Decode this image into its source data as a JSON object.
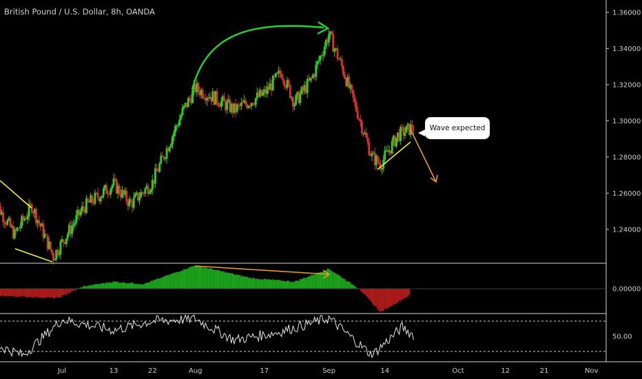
{
  "title": "British Pound / U.S. Dollar, 8h, OANDA",
  "annotation": "Wave expected",
  "chart_data": [
    {
      "type": "candlestick",
      "title": "British Pound / U.S. Dollar, 8h, OANDA",
      "ylim": [
        1.222,
        1.363
      ],
      "y_ticks": [
        "1.36000",
        "1.34000",
        "1.32000",
        "1.30000",
        "1.28000",
        "1.26000",
        "1.24000"
      ],
      "x_ticks": [
        "Jul",
        "13",
        "22",
        "Aug",
        "17",
        "Sep",
        "14",
        "Oct",
        "12",
        "21",
        "Nov"
      ],
      "approx_close_path": [
        {
          "date": "Jun 15",
          "close": 1.257
        },
        {
          "date": "Jun 20",
          "close": 1.237
        },
        {
          "date": "Jun 24",
          "close": 1.253
        },
        {
          "date": "Jun 29",
          "close": 1.225
        },
        {
          "date": "Jul 6",
          "close": 1.252
        },
        {
          "date": "Jul 13",
          "close": 1.265
        },
        {
          "date": "Jul 17",
          "close": 1.254
        },
        {
          "date": "Jul 22",
          "close": 1.266
        },
        {
          "date": "Jul 29",
          "close": 1.305
        },
        {
          "date": "Aug 1",
          "close": 1.318
        },
        {
          "date": "Aug 6",
          "close": 1.312
        },
        {
          "date": "Aug 10",
          "close": 1.306
        },
        {
          "date": "Aug 17",
          "close": 1.315
        },
        {
          "date": "Aug 21",
          "close": 1.327
        },
        {
          "date": "Aug 24",
          "close": 1.31
        },
        {
          "date": "Aug 28",
          "close": 1.323
        },
        {
          "date": "Sep 1",
          "close": 1.348
        },
        {
          "date": "Sep 4",
          "close": 1.33
        },
        {
          "date": "Sep 8",
          "close": 1.302
        },
        {
          "date": "Sep 11",
          "close": 1.28
        },
        {
          "date": "Sep 13",
          "close": 1.276
        },
        {
          "date": "Sep 17",
          "close": 1.292
        },
        {
          "date": "Sep 21",
          "close": 1.297
        }
      ],
      "up_color": "#26d526",
      "down_color": "#e03030"
    },
    {
      "type": "bar",
      "name": "histogram oscillator",
      "y_ticks": [
        "0.00000"
      ],
      "approx_values": [
        {
          "date": "Jun 16",
          "value": -0.3
        },
        {
          "date": "Jun 30",
          "value": -0.4
        },
        {
          "date": "Jul 6",
          "value": 0.1
        },
        {
          "date": "Jul 13",
          "value": 0.3
        },
        {
          "date": "Jul 20",
          "value": 0.2
        },
        {
          "date": "Aug 1",
          "value": 1.0
        },
        {
          "date": "Aug 14",
          "value": 0.45
        },
        {
          "date": "Aug 24",
          "value": 0.3
        },
        {
          "date": "Sep 1",
          "value": 0.85
        },
        {
          "date": "Sep 8",
          "value": 0.0
        },
        {
          "date": "Sep 13",
          "value": -1.0
        },
        {
          "date": "Sep 20",
          "value": -0.25
        }
      ],
      "pos_color": "#1fb51f",
      "neg_color": "#c01e1e"
    },
    {
      "type": "line",
      "name": "oscillator",
      "y_ticks": [
        "50.00"
      ],
      "approx_values": [
        {
          "date": "Jun 15",
          "value": 40
        },
        {
          "date": "Jun 22",
          "value": 25
        },
        {
          "date": "Jul 1",
          "value": 72
        },
        {
          "date": "Jul 13",
          "value": 58
        },
        {
          "date": "Jul 22",
          "value": 70
        },
        {
          "date": "Aug 1",
          "value": 73
        },
        {
          "date": "Aug 10",
          "value": 45
        },
        {
          "date": "Aug 20",
          "value": 55
        },
        {
          "date": "Sep 1",
          "value": 74
        },
        {
          "date": "Sep 11",
          "value": 25
        },
        {
          "date": "Sep 18",
          "value": 62
        },
        {
          "date": "Sep 21",
          "value": 50
        }
      ],
      "levels": [
        70,
        30
      ]
    }
  ]
}
